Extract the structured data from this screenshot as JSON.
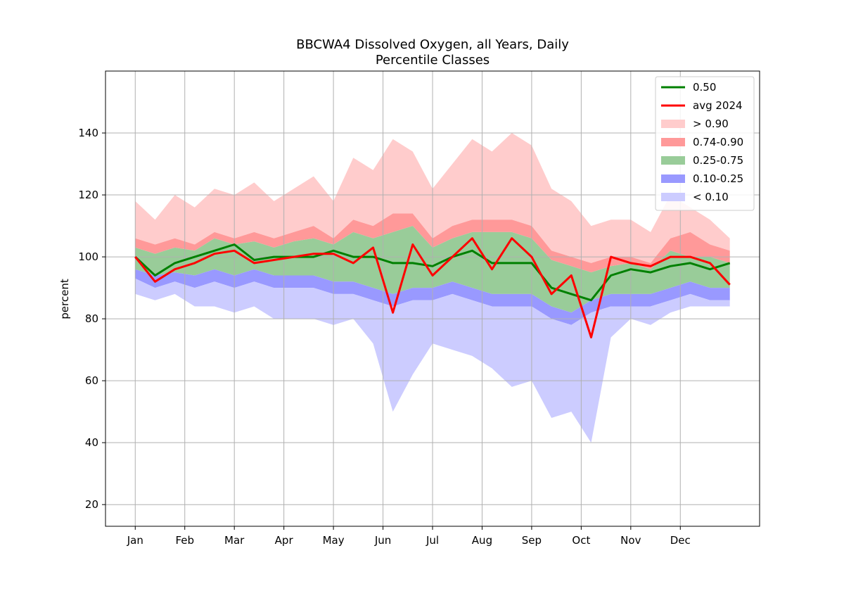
{
  "chart_data": {
    "type": "area",
    "title_line1": "BBCWA4 Dissolved Oxygen, all Years, Daily",
    "title_line2": "Percentile Classes",
    "xlabel": "",
    "ylabel": "percent",
    "ylim": [
      13,
      160
    ],
    "y_ticks": [
      20,
      40,
      60,
      80,
      100,
      120,
      140
    ],
    "xlim": [
      -12,
      252
    ],
    "x_months": [
      {
        "label": "Jan",
        "day": 0
      },
      {
        "label": "Feb",
        "day": 20
      },
      {
        "label": "Mar",
        "day": 40
      },
      {
        "label": "Apr",
        "day": 60
      },
      {
        "label": "May",
        "day": 80
      },
      {
        "label": "Jun",
        "day": 100
      },
      {
        "label": "Jul",
        "day": 120
      },
      {
        "label": "Aug",
        "day": 140
      },
      {
        "label": "Sep",
        "day": 160
      },
      {
        "label": "Oct",
        "day": 180
      },
      {
        "label": "Nov",
        "day": 200
      },
      {
        "label": "Dec",
        "day": 220
      }
    ],
    "grid": true,
    "legend_position": "top-right",
    "legend": [
      {
        "label": "0.50",
        "kind": "line",
        "color": "#008000"
      },
      {
        "label": "avg 2024",
        "kind": "line",
        "color": "#ff0000"
      },
      {
        "label": "> 0.90",
        "kind": "band",
        "color": "#ffcccc"
      },
      {
        "label": "0.74-0.90",
        "kind": "band",
        "color": "#ff9999"
      },
      {
        "label": "0.25-0.75",
        "kind": "band",
        "color": "#99cc99"
      },
      {
        "label": "0.10-0.25",
        "kind": "band",
        "color": "#9999ff"
      },
      {
        "label": "< 0.10",
        "kind": "band",
        "color": "#ccccff"
      }
    ],
    "x": [
      0,
      8,
      16,
      24,
      32,
      40,
      48,
      56,
      64,
      72,
      80,
      88,
      96,
      104,
      112,
      120,
      128,
      136,
      144,
      152,
      160,
      168,
      176,
      184,
      192,
      200,
      208,
      216,
      224,
      232,
      240
    ],
    "series": [
      {
        "name": "> 0.90",
        "role": "band_top",
        "color": "#ffcccc",
        "values": [
          118,
          112,
          120,
          116,
          122,
          120,
          124,
          118,
          122,
          126,
          118,
          132,
          128,
          138,
          134,
          122,
          130,
          138,
          134,
          140,
          136,
          122,
          118,
          110,
          112,
          112,
          108,
          120,
          116,
          112,
          106
        ]
      },
      {
        "name": "0.74-0.90",
        "role": "band_top",
        "color": "#ff9999",
        "values": [
          106,
          104,
          106,
          104,
          108,
          106,
          108,
          106,
          108,
          110,
          106,
          112,
          110,
          114,
          114,
          106,
          110,
          112,
          112,
          112,
          110,
          102,
          100,
          98,
          100,
          100,
          98,
          106,
          108,
          104,
          102
        ]
      },
      {
        "name": "0.25-0.75",
        "role": "band_top",
        "color": "#99cc99",
        "values": [
          103,
          101,
          103,
          102,
          106,
          104,
          105,
          103,
          105,
          106,
          104,
          108,
          106,
          108,
          110,
          103,
          106,
          108,
          108,
          108,
          106,
          99,
          97,
          95,
          97,
          98,
          96,
          102,
          100,
          100,
          98
        ]
      },
      {
        "name": "0.10-0.25",
        "role": "band_top",
        "color": "#9999ff",
        "values": [
          96,
          94,
          95,
          94,
          96,
          94,
          96,
          94,
          94,
          94,
          92,
          92,
          90,
          88,
          90,
          90,
          92,
          90,
          88,
          88,
          88,
          84,
          82,
          86,
          88,
          88,
          88,
          90,
          92,
          90,
          90
        ]
      },
      {
        "name": "< 0.10",
        "role": "band_top",
        "color": "#ccccff",
        "values": [
          93,
          90,
          92,
          90,
          92,
          90,
          92,
          90,
          90,
          90,
          88,
          88,
          86,
          84,
          86,
          86,
          88,
          86,
          84,
          84,
          84,
          80,
          78,
          82,
          84,
          84,
          84,
          86,
          88,
          86,
          86
        ]
      },
      {
        "name": "< 0.10",
        "role": "band_bottom",
        "color": "#ccccff",
        "values": [
          88,
          86,
          88,
          84,
          84,
          82,
          84,
          80,
          80,
          80,
          78,
          80,
          72,
          50,
          62,
          72,
          70,
          68,
          64,
          58,
          60,
          48,
          50,
          40,
          74,
          80,
          78,
          82,
          84,
          84,
          84
        ]
      },
      {
        "name": "0.50",
        "role": "line",
        "color": "#008000",
        "values": [
          100,
          94,
          98,
          100,
          102,
          104,
          99,
          100,
          100,
          100,
          102,
          100,
          100,
          98,
          98,
          97,
          100,
          102,
          98,
          98,
          98,
          90,
          88,
          86,
          94,
          96,
          95,
          97,
          98,
          96,
          98
        ]
      },
      {
        "name": "avg 2024",
        "role": "line",
        "color": "#ff0000",
        "values": [
          100,
          92,
          96,
          98,
          101,
          102,
          98,
          99,
          100,
          101,
          101,
          98,
          103,
          82,
          104,
          94,
          100,
          106,
          96,
          106,
          100,
          88,
          94,
          74,
          100,
          98,
          97,
          100,
          100,
          98,
          91
        ]
      }
    ]
  }
}
